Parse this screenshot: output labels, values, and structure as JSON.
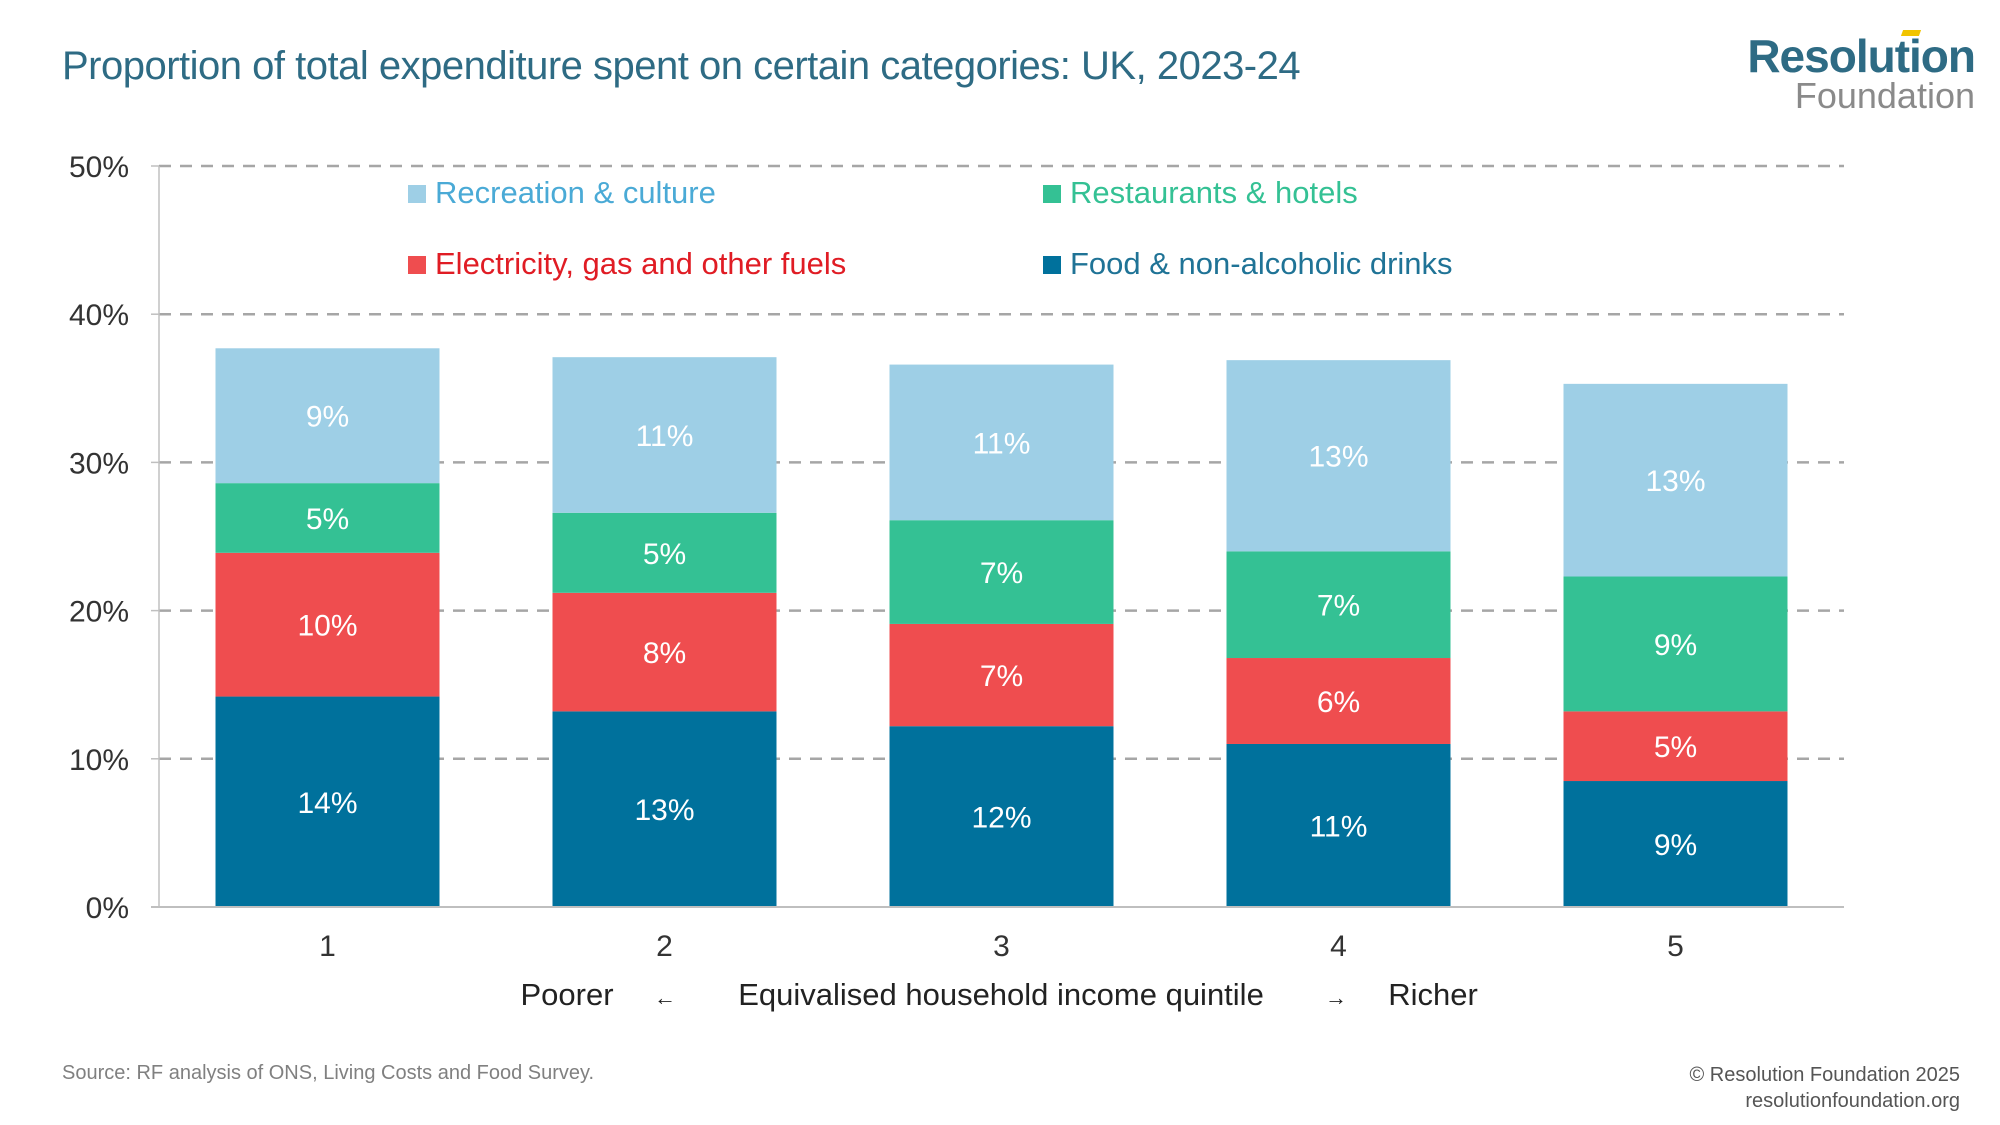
{
  "header": {
    "title": "Proportion of total expenditure spent on certain categories: UK, 2023-24",
    "logo_top": "Resolution",
    "logo_bottom": "Foundation"
  },
  "footer": {
    "source": "Source: RF analysis of ONS, Living Costs and Food Survey.",
    "copyright": "© Resolution Foundation 2025",
    "website": "resolutionfoundation.org"
  },
  "chart_data": {
    "type": "bar",
    "stacked": true,
    "title": "Proportion of total expenditure spent on certain categories: UK, 2023-24",
    "categories": [
      "1",
      "2",
      "3",
      "4",
      "5"
    ],
    "xlabel": "Equivalised household income quintile",
    "xlabel_left": "Poorer",
    "xlabel_left_arrow": "←",
    "xlabel_right_arrow": "→",
    "xlabel_right": "Richer",
    "ylabel": "",
    "ylim": [
      0,
      50
    ],
    "yticks": [
      0,
      10,
      20,
      30,
      40,
      50
    ],
    "ytick_labels": [
      "0%",
      "10%",
      "20%",
      "30%",
      "40%",
      "50%"
    ],
    "grid": true,
    "legend_position": "top-inside",
    "series": [
      {
        "name": "Food & non-alcoholic drinks",
        "color": "#00719c",
        "text_color": "#1f7396",
        "values": [
          14.2,
          13.2,
          12.2,
          11.0,
          8.5
        ],
        "labels": [
          "14%",
          "13%",
          "12%",
          "11%",
          "9%"
        ]
      },
      {
        "name": "Electricity, gas and other fuels",
        "color": "#ef4d4f",
        "text_color": "#e01c24",
        "values": [
          9.7,
          8.0,
          6.9,
          5.8,
          4.7
        ],
        "labels": [
          "10%",
          "8%",
          "7%",
          "6%",
          "5%"
        ]
      },
      {
        "name": "Restaurants & hotels",
        "color": "#34c194",
        "text_color": "#34c194",
        "values": [
          4.7,
          5.4,
          7.0,
          7.2,
          9.1
        ],
        "labels": [
          "5%",
          "5%",
          "7%",
          "7%",
          "9%"
        ]
      },
      {
        "name": "Recreation & culture",
        "color": "#9ecfe6",
        "text_color": "#4aaad6",
        "values": [
          9.1,
          10.5,
          10.5,
          12.9,
          13.0
        ],
        "labels": [
          "9%",
          "11%",
          "11%",
          "13%",
          "13%"
        ]
      }
    ],
    "legend_order": [
      3,
      2,
      1,
      0
    ]
  }
}
